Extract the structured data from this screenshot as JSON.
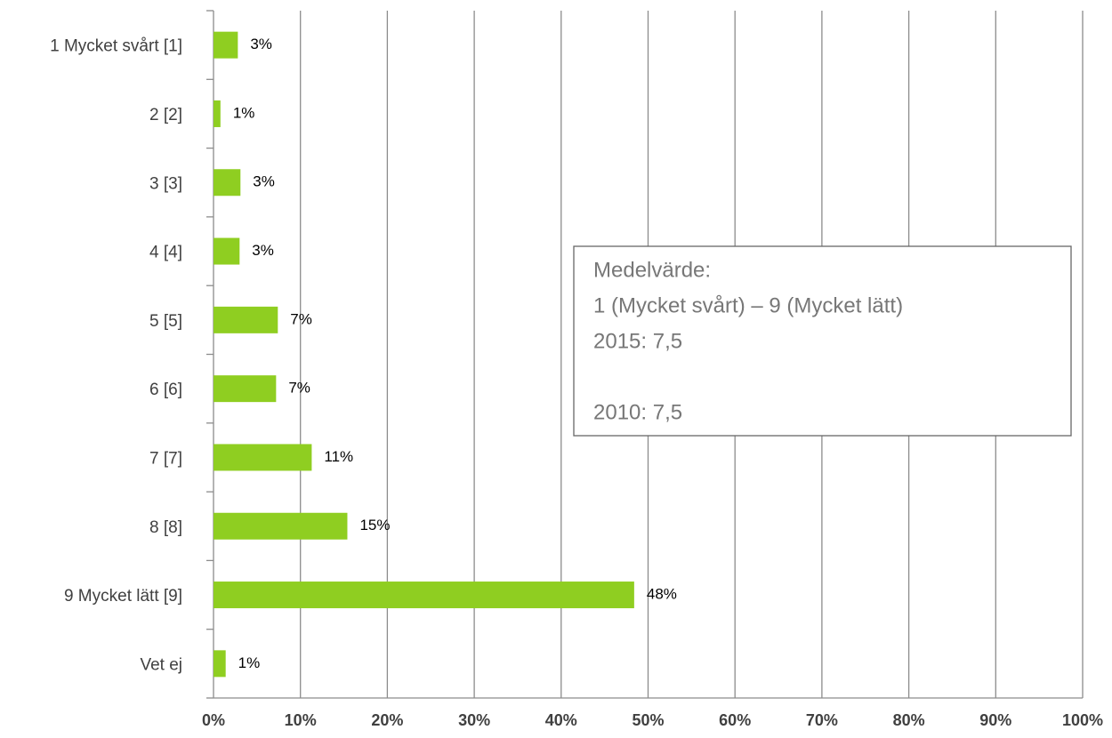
{
  "chart_data": {
    "type": "hbar",
    "categories": [
      "1 Mycket svårt [1]",
      "2 [2]",
      "3 [3]",
      "4 [4]",
      "5 [5]",
      "6 [6]",
      "7 [7]",
      "8 [8]",
      "9 Mycket lätt [9]",
      "Vet ej"
    ],
    "values": [
      2.8,
      0.8,
      3.1,
      3.0,
      7.4,
      7.2,
      11.3,
      15.4,
      48.4,
      1.4
    ],
    "value_labels": [
      "3%",
      "1%",
      "3%",
      "3%",
      "7%",
      "7%",
      "11%",
      "15%",
      "48%",
      "1%"
    ],
    "color": "#8fce21",
    "xlim": [
      0,
      100
    ],
    "xticks": [
      {
        "value": 0,
        "label": "0%"
      },
      {
        "value": 10,
        "label": "10%"
      },
      {
        "value": 20,
        "label": "20%"
      },
      {
        "value": 30,
        "label": "30%"
      },
      {
        "value": 40,
        "label": "40%"
      },
      {
        "value": 50,
        "label": "50%"
      },
      {
        "value": 60,
        "label": "60%"
      },
      {
        "value": 70,
        "label": "70%"
      },
      {
        "value": 80,
        "label": "80%"
      },
      {
        "value": 90,
        "label": "90%"
      },
      {
        "value": 100,
        "label": "100%"
      }
    ],
    "grid": true,
    "annotation": [
      [
        "Medelvärde:",
        "1 (Mycket svårt) – 9 (Mycket lätt)",
        "2015: 7,5"
      ],
      [
        "2010: 7,5"
      ]
    ]
  }
}
